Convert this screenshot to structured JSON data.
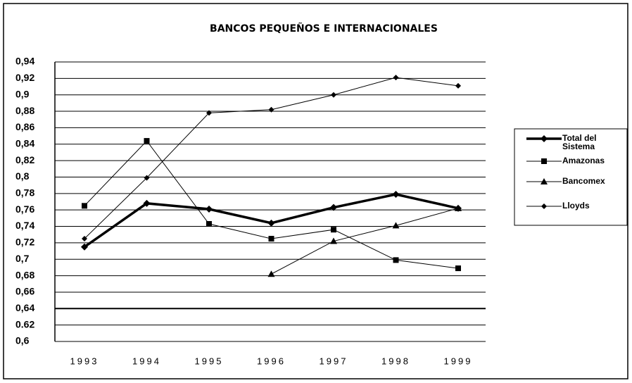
{
  "chart_data": {
    "type": "line",
    "title": "BANCOS PEQUEÑOS E INTERNACIONALES",
    "categories": [
      "1993",
      "1994",
      "1995",
      "1996",
      "1997",
      "1998",
      "1999"
    ],
    "series": [
      {
        "name": "Total del Sistema",
        "color": "#000000",
        "marker": "diamond",
        "line_width": 3.5,
        "values": [
          0.715,
          0.768,
          0.761,
          0.744,
          0.763,
          0.779,
          0.762
        ]
      },
      {
        "name": "Amazonas",
        "color": "#000000",
        "marker": "square",
        "line_width": 1,
        "values": [
          0.765,
          0.844,
          0.743,
          0.725,
          0.736,
          0.699,
          0.689
        ]
      },
      {
        "name": "Bancomex",
        "color": "#000000",
        "marker": "triangle",
        "line_width": 1,
        "values": [
          null,
          null,
          null,
          0.682,
          0.722,
          0.741,
          0.762
        ]
      },
      {
        "name": "Lloyds",
        "color": "#000000",
        "marker": "diamond",
        "line_width": 1,
        "values": [
          0.725,
          0.799,
          0.878,
          0.882,
          0.9,
          0.921,
          0.911
        ]
      }
    ],
    "ylim": [
      0.6,
      0.94
    ],
    "yticks": [
      {
        "value": 0.6,
        "label": "0,6"
      },
      {
        "value": 0.62,
        "label": "0.62"
      },
      {
        "value": 0.64,
        "label": "0,64"
      },
      {
        "value": 0.66,
        "label": "0,66"
      },
      {
        "value": 0.68,
        "label": "0,68"
      },
      {
        "value": 0.7,
        "label": "0,7"
      },
      {
        "value": 0.72,
        "label": "0,72"
      },
      {
        "value": 0.74,
        "label": "0,74"
      },
      {
        "value": 0.76,
        "label": "0,76"
      },
      {
        "value": 0.78,
        "label": "0,78"
      },
      {
        "value": 0.8,
        "label": "0,8"
      },
      {
        "value": 0.82,
        "label": "0,82"
      },
      {
        "value": 0.84,
        "label": "0,84"
      },
      {
        "value": 0.86,
        "label": "0,86"
      },
      {
        "value": 0.88,
        "label": "0,88"
      },
      {
        "value": 0.9,
        "label": "0,9"
      },
      {
        "value": 0.92,
        "label": "0,92"
      },
      {
        "value": 0.94,
        "label": "0,94"
      }
    ],
    "grid": true,
    "legend": "right"
  }
}
